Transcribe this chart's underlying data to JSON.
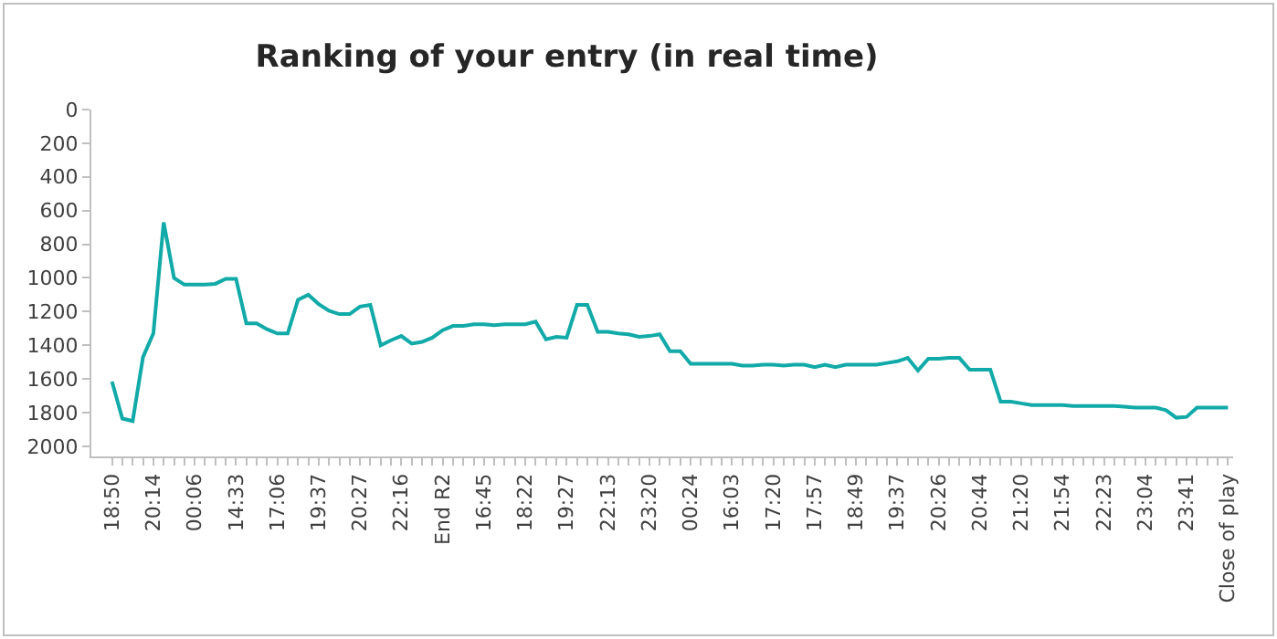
{
  "chart_data": {
    "type": "line",
    "title": "Ranking of your entry (in real time)",
    "categories": [
      "18:50",
      null,
      null,
      null,
      "20:14",
      null,
      null,
      null,
      "00:06",
      null,
      null,
      null,
      "14:33",
      null,
      null,
      null,
      "17:06",
      null,
      null,
      null,
      "19:37",
      null,
      null,
      null,
      "20:27",
      null,
      null,
      null,
      "22:16",
      null,
      null,
      null,
      "End R2",
      null,
      null,
      null,
      "16:45",
      null,
      null,
      null,
      "18:22",
      null,
      null,
      null,
      "19:27",
      null,
      null,
      null,
      "22:13",
      null,
      null,
      null,
      "23:20",
      null,
      null,
      null,
      "00:24",
      null,
      null,
      null,
      "16:03",
      null,
      null,
      null,
      "17:20",
      null,
      null,
      null,
      "17:57",
      null,
      null,
      null,
      "18:49",
      null,
      null,
      null,
      "19:37",
      null,
      null,
      null,
      "20:26",
      null,
      null,
      null,
      "20:44",
      null,
      null,
      null,
      "21:20",
      null,
      null,
      null,
      "21:54",
      null,
      null,
      null,
      "22:23",
      null,
      null,
      null,
      "23:04",
      null,
      null,
      null,
      "23:41",
      null,
      null,
      null,
      "Close of play"
    ],
    "series": [
      {
        "color": "#12aaa8",
        "values": [
          1615,
          1835,
          1850,
          1470,
          1330,
          670,
          1000,
          1040,
          1040,
          1040,
          1035,
          1005,
          1005,
          1270,
          1270,
          1305,
          1330,
          1330,
          1130,
          1100,
          1155,
          1195,
          1215,
          1215,
          1170,
          1160,
          1400,
          1370,
          1345,
          1390,
          1380,
          1355,
          1310,
          1285,
          1285,
          1275,
          1275,
          1280,
          1275,
          1275,
          1275,
          1260,
          1365,
          1350,
          1355,
          1160,
          1160,
          1320,
          1320,
          1330,
          1335,
          1350,
          1345,
          1335,
          1435,
          1435,
          1510,
          1510,
          1510,
          1510,
          1510,
          1520,
          1520,
          1515,
          1515,
          1520,
          1515,
          1515,
          1530,
          1515,
          1530,
          1515,
          1515,
          1515,
          1515,
          1505,
          1495,
          1475,
          1550,
          1480,
          1480,
          1475,
          1475,
          1545,
          1545,
          1545,
          1735,
          1735,
          1745,
          1755,
          1755,
          1755,
          1755,
          1760,
          1760,
          1760,
          1760,
          1760,
          1765,
          1770,
          1770,
          1770,
          1785,
          1830,
          1825,
          1770,
          1770,
          1770,
          1770
        ]
      }
    ],
    "ylim": [
      2060,
      0
    ],
    "yticks": [
      0,
      200,
      400,
      600,
      800,
      1000,
      1200,
      1400,
      1600,
      1800,
      2000
    ],
    "legend": false,
    "marker": "none",
    "line_style": "solid"
  }
}
